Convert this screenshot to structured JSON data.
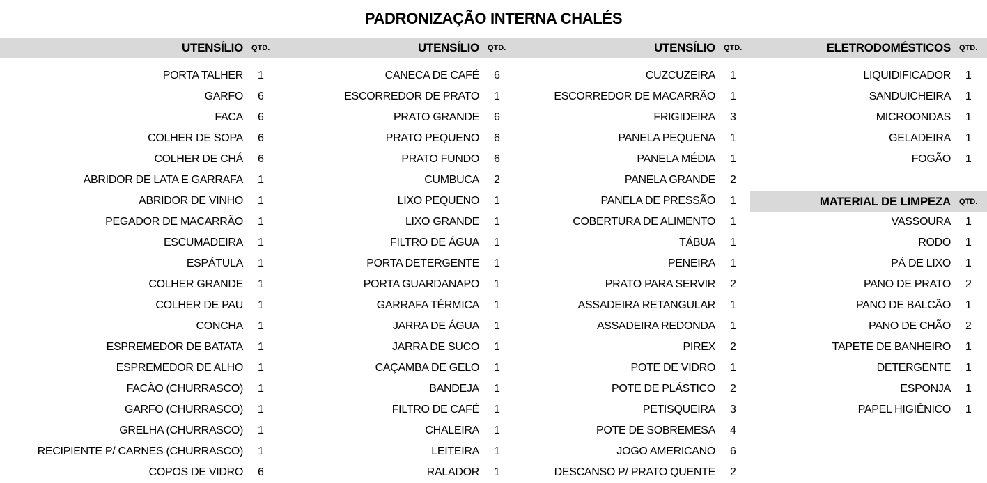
{
  "title": "PADRONIZAÇÃO INTERNA CHALÉS",
  "qty_label": "QTD.",
  "columns": [
    {
      "header": "UTENSÍLIO",
      "items": [
        [
          "PORTA TALHER",
          "1"
        ],
        [
          "GARFO",
          "6"
        ],
        [
          "FACA",
          "6"
        ],
        [
          "COLHER DE SOPA",
          "6"
        ],
        [
          "COLHER DE CHÁ",
          "6"
        ],
        [
          "ABRIDOR DE LATA E GARRAFA",
          "1"
        ],
        [
          "ABRIDOR DE VINHO",
          "1"
        ],
        [
          "PEGADOR DE MACARRÃO",
          "1"
        ],
        [
          "ESCUMADEIRA",
          "1"
        ],
        [
          "ESPÁTULA",
          "1"
        ],
        [
          "COLHER GRANDE",
          "1"
        ],
        [
          "COLHER DE PAU",
          "1"
        ],
        [
          "CONCHA",
          "1"
        ],
        [
          "ESPREMEDOR DE BATATA",
          "1"
        ],
        [
          "ESPREMEDOR DE ALHO",
          "1"
        ],
        [
          "FACÃO (CHURRASCO)",
          "1"
        ],
        [
          "GARFO (CHURRASCO)",
          "1"
        ],
        [
          "GRELHA (CHURRASCO)",
          "1"
        ],
        [
          "RECIPIENTE P/ CARNES (CHURRASCO)",
          "1"
        ],
        [
          "COPOS DE VIDRO",
          "6"
        ]
      ]
    },
    {
      "header": "UTENSÍLIO",
      "items": [
        [
          "CANECA DE CAFÉ",
          "6"
        ],
        [
          "ESCORREDOR DE PRATO",
          "1"
        ],
        [
          "PRATO GRANDE",
          "6"
        ],
        [
          "PRATO PEQUENO",
          "6"
        ],
        [
          "PRATO FUNDO",
          "6"
        ],
        [
          "CUMBUCA",
          "2"
        ],
        [
          "LIXO PEQUENO",
          "1"
        ],
        [
          "LIXO GRANDE",
          "1"
        ],
        [
          "FILTRO DE ÁGUA",
          "1"
        ],
        [
          "PORTA DETERGENTE",
          "1"
        ],
        [
          "PORTA GUARDANAPO",
          "1"
        ],
        [
          "GARRAFA TÉRMICA",
          "1"
        ],
        [
          "JARRA DE ÁGUA",
          "1"
        ],
        [
          "JARRA DE SUCO",
          "1"
        ],
        [
          "CAÇAMBA DE GELO",
          "1"
        ],
        [
          "BANDEJA",
          "1"
        ],
        [
          "FILTRO DE CAFÉ",
          "1"
        ],
        [
          "CHALEIRA",
          "1"
        ],
        [
          "LEITEIRA",
          "1"
        ],
        [
          "RALADOR",
          "1"
        ]
      ]
    },
    {
      "header": "UTENSÍLIO",
      "items": [
        [
          "CUZCUZEIRA",
          "1"
        ],
        [
          "ESCORREDOR DE MACARRÃO",
          "1"
        ],
        [
          "FRIGIDEIRA",
          "3"
        ],
        [
          "PANELA PEQUENA",
          "1"
        ],
        [
          "PANELA MÉDIA",
          "1"
        ],
        [
          "PANELA GRANDE",
          "2"
        ],
        [
          "PANELA DE PRESSÃO",
          "1"
        ],
        [
          "COBERTURA DE ALIMENTO",
          "1"
        ],
        [
          "TÁBUA",
          "1"
        ],
        [
          "PENEIRA",
          "1"
        ],
        [
          "PRATO PARA SERVIR",
          "2"
        ],
        [
          "ASSADEIRA RETANGULAR",
          "1"
        ],
        [
          "ASSADEIRA REDONDA",
          "1"
        ],
        [
          "PIREX",
          "2"
        ],
        [
          "POTE DE VIDRO",
          "1"
        ],
        [
          "POTE DE PLÁSTICO",
          "2"
        ],
        [
          "PETISQUEIRA",
          "3"
        ],
        [
          "POTE DE SOBREMESA",
          "4"
        ],
        [
          "JOGO AMERICANO",
          "6"
        ],
        [
          "DESCANSO P/ PRATO QUENTE",
          "2"
        ]
      ]
    },
    {
      "header": "ELETRODOMÉSTICOS",
      "items": [
        [
          "LIQUIDIFICADOR",
          "1"
        ],
        [
          "SANDUICHEIRA",
          "1"
        ],
        [
          "MICROONDAS",
          "1"
        ],
        [
          "GELADEIRA",
          "1"
        ],
        [
          "FOGÃO",
          "1"
        ]
      ]
    },
    {
      "header": "MATERIAL DE LIMPEZA",
      "items": [
        [
          "VASSOURA",
          "1"
        ],
        [
          "RODO",
          "1"
        ],
        [
          "PÁ DE LIXO",
          "1"
        ],
        [
          "PANO DE PRATO",
          "2"
        ],
        [
          "PANO DE BALCÃO",
          "1"
        ],
        [
          "PANO DE CHÃO",
          "2"
        ],
        [
          "TAPETE DE BANHEIRO",
          "1"
        ],
        [
          "DETERGENTE",
          "1"
        ],
        [
          "ESPONJA",
          "1"
        ],
        [
          "PAPEL HIGIÊNICO",
          "1"
        ]
      ]
    }
  ]
}
